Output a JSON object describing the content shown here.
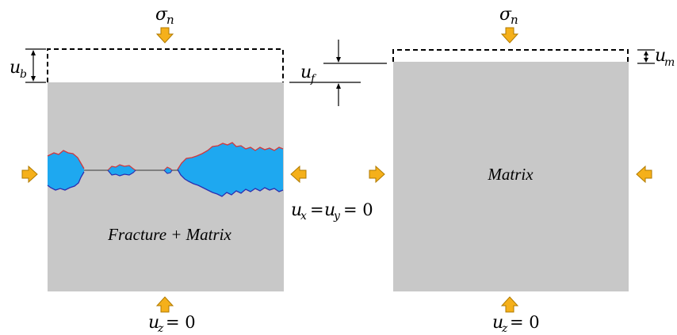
{
  "left_panel": {
    "load_label": "σ",
    "load_sub": "n",
    "disp_label": "u",
    "disp_sub": "b",
    "region_label": "Fracture + Matrix",
    "bottom_bc_var": "u",
    "bottom_bc_sub": "z",
    "bottom_bc_rhs": "= 0"
  },
  "middle": {
    "fracture_disp": "u",
    "fracture_disp_sub": "f",
    "lateral_bc_u1": "u",
    "lateral_bc_s1": "x",
    "lateral_bc_u2": "u",
    "lateral_bc_s2": "y",
    "lateral_bc_eq": "=",
    "lateral_bc_rhs": "= 0"
  },
  "right_panel": {
    "load_label": "σ",
    "load_sub": "n",
    "disp_label": "u",
    "disp_sub": "m",
    "region_label": "Matrix",
    "bottom_bc_var": "u",
    "bottom_bc_sub": "z",
    "bottom_bc_rhs": "= 0"
  },
  "colors": {
    "block": "#c8c8c8",
    "fracture_fill": "#1ea8f0",
    "fracture_top_edge": "#d2373c",
    "fracture_bottom_edge": "#2b2fb0",
    "arrow_fill": "#f5b01a",
    "arrow_stroke": "#b07a00"
  }
}
